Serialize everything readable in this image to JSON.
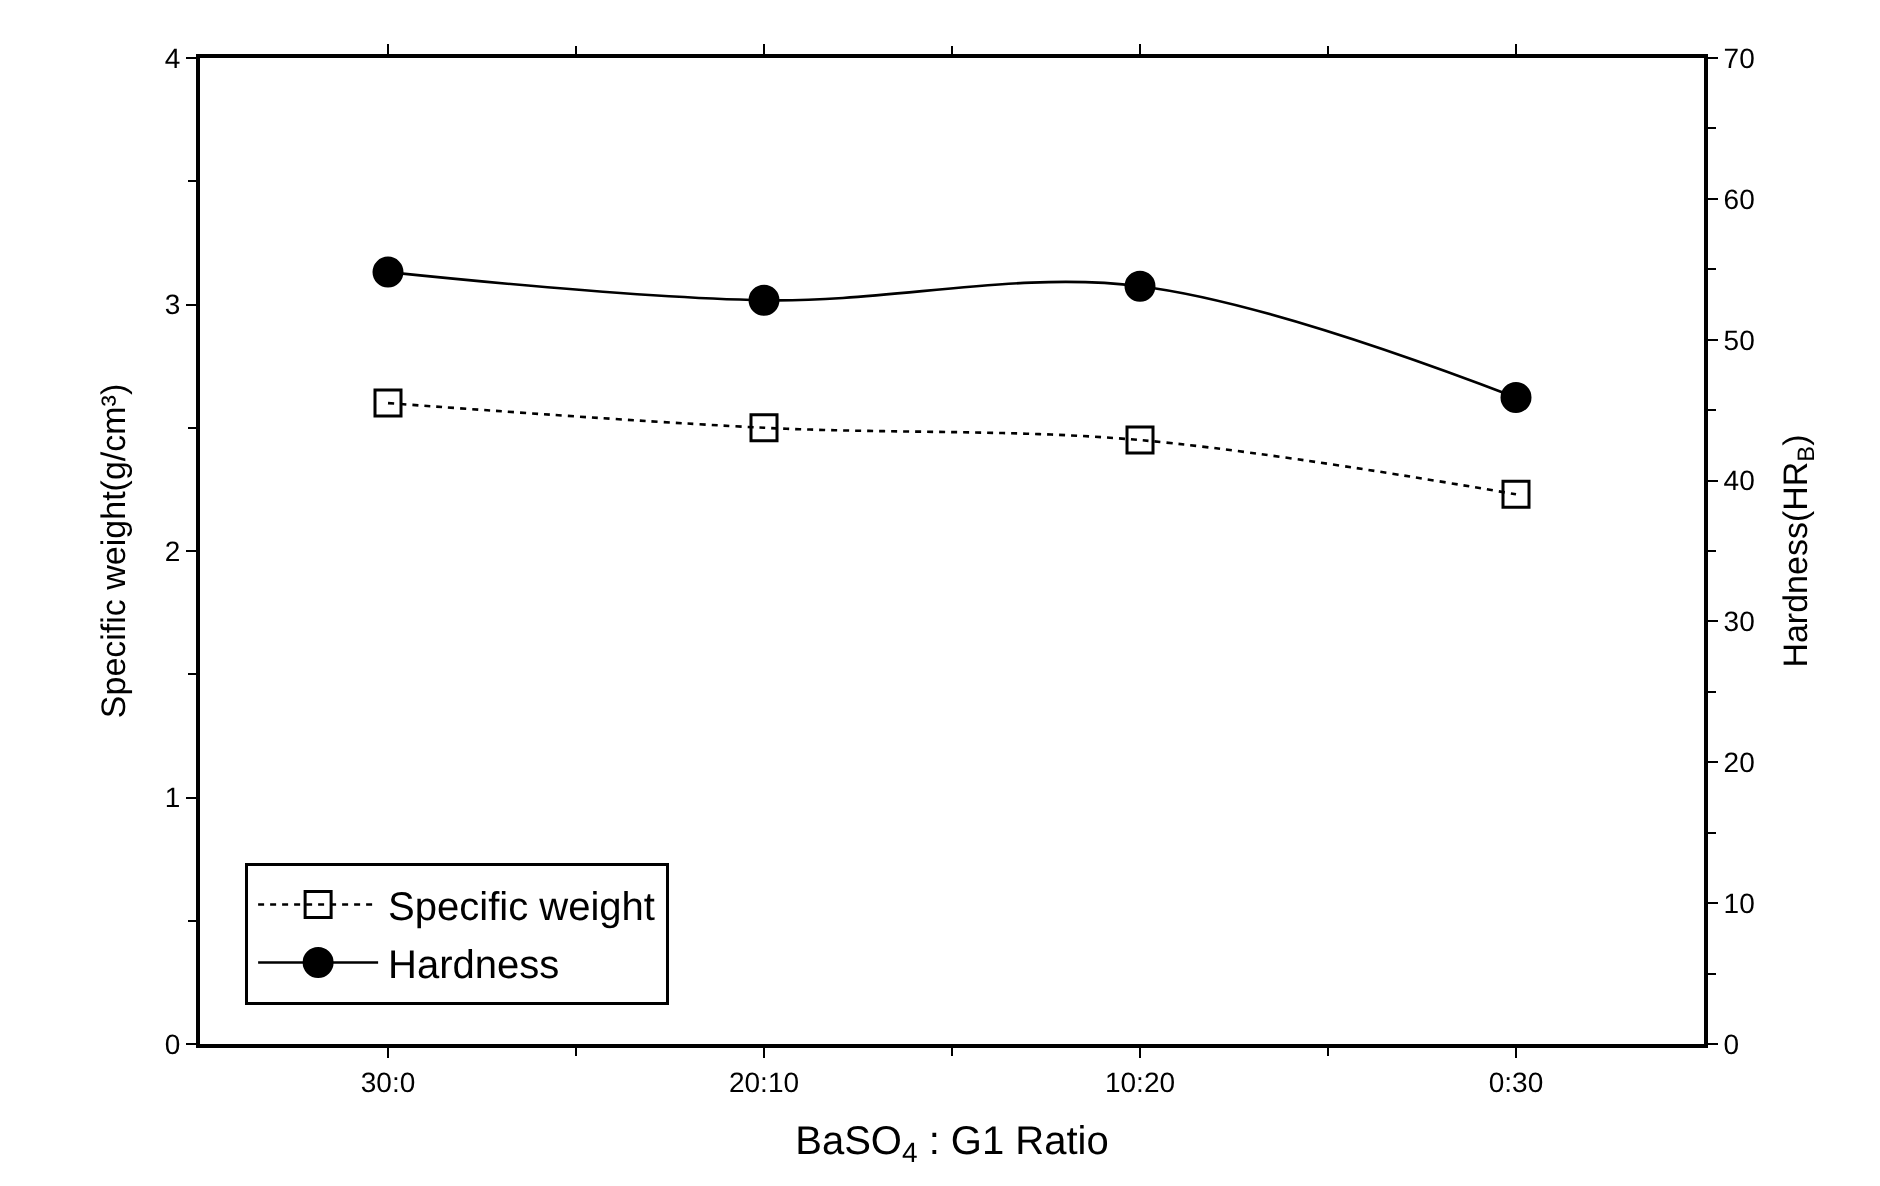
{
  "chart_data": {
    "type": "line",
    "xlabel": "BaSO$_{4}$ : G1 Ratio",
    "ylabel": "Specific weight(g/cm³)",
    "y2label": "Hardness(HR$_{B}$)",
    "categories": [
      "30:0",
      "20:10",
      "10:20",
      "0:30"
    ],
    "ylim": [
      0,
      4
    ],
    "yticks": [
      0,
      1,
      2,
      3,
      4
    ],
    "y2lim": [
      0,
      70
    ],
    "y2ticks": [
      0,
      10,
      20,
      30,
      40,
      50,
      60,
      70
    ],
    "legend": "bottom left",
    "series": [
      {
        "name": "Specific weight",
        "color": "#000000",
        "marker": "square",
        "line_style": "dotted",
        "values": [
          2.6,
          2.5,
          2.45,
          2.23
        ]
      },
      {
        "name": "Hardness",
        "color": "#000000",
        "marker": "circle",
        "line_style": "solid",
        "axis": "y2",
        "values": [
          54.8,
          52.8,
          53.8,
          45.9
        ]
      }
    ]
  }
}
